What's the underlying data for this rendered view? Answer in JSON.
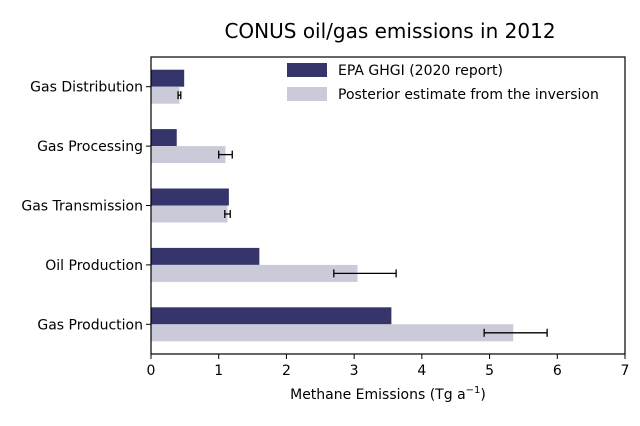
{
  "chart_data": {
    "type": "bar",
    "orientation": "horizontal",
    "title": "CONUS oil/gas emissions in 2012",
    "xlabel": "Methane Emissions (Tg a",
    "xlabel_sup": "−1",
    "xlabel_close": ")",
    "ylabel": "",
    "xlim": [
      0,
      7
    ],
    "xticks": [
      "0",
      "1",
      "2",
      "3",
      "4",
      "5",
      "6",
      "7"
    ],
    "grid": false,
    "legend_position": "top-right",
    "categories": [
      "Gas Production",
      "Oil Production",
      "Gas Transmission",
      "Gas Processing",
      "Gas Distribution"
    ],
    "series": [
      {
        "name": "EPA GHGI (2020 report)",
        "color": "#35356b",
        "values": [
          3.55,
          1.6,
          1.15,
          0.38,
          0.49
        ]
      },
      {
        "name": "Posterior estimate from the inversion",
        "color": "#cbcad9",
        "values": [
          5.35,
          3.05,
          1.13,
          1.1,
          0.42
        ],
        "error": [
          [
            4.92,
            5.85
          ],
          [
            2.7,
            3.62
          ],
          [
            1.09,
            1.17
          ],
          [
            1.0,
            1.2
          ],
          [
            0.4,
            0.44
          ]
        ]
      }
    ]
  }
}
